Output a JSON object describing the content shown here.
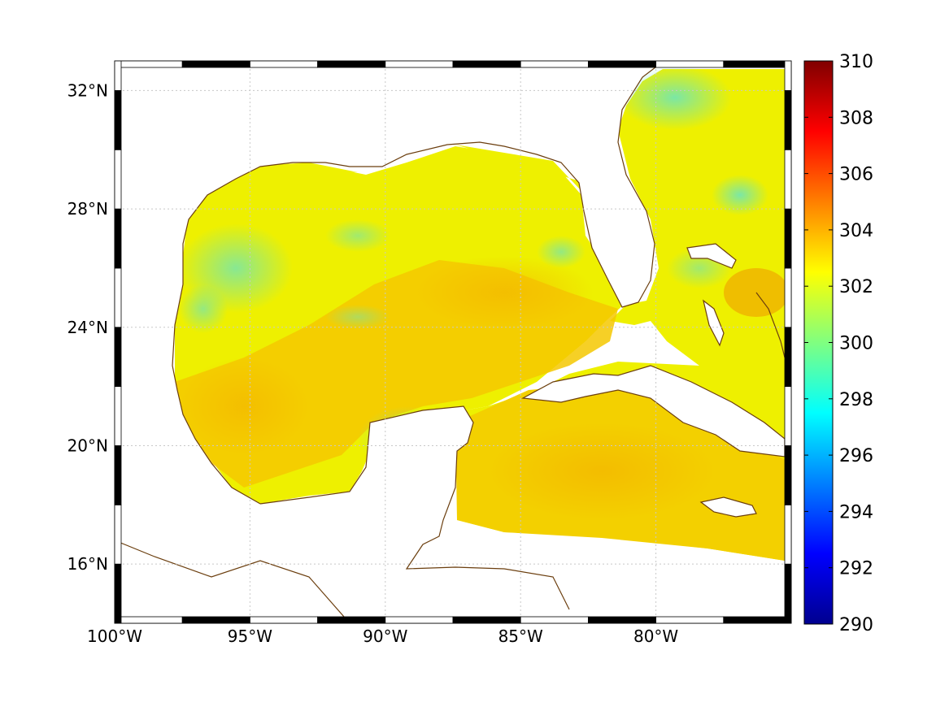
{
  "map": {
    "type": "sea-surface-temperature-map",
    "lon_range": [
      -100,
      -75
    ],
    "lat_range": [
      14,
      33
    ],
    "lon_ticks": [
      "100°W",
      "95°W",
      "90°W",
      "85°W",
      "80°W"
    ],
    "lat_ticks": [
      "32°N",
      "28°N",
      "24°N",
      "20°N",
      "16°N"
    ],
    "grid": true,
    "grid_style": "dotted",
    "coastline_color": "#6b3e0e",
    "land_color": "#ffffff"
  },
  "colorbar": {
    "min": 290,
    "max": 310,
    "tick_labels": [
      "310",
      "308",
      "306",
      "304",
      "302",
      "300",
      "298",
      "296",
      "294",
      "292",
      "290"
    ],
    "colormap": "jet",
    "placement": "right"
  },
  "colors": {
    "warm": "#f5c000",
    "mid": "#eef000",
    "cool": "#9ee88a",
    "cooler": "#5ee0c8"
  }
}
